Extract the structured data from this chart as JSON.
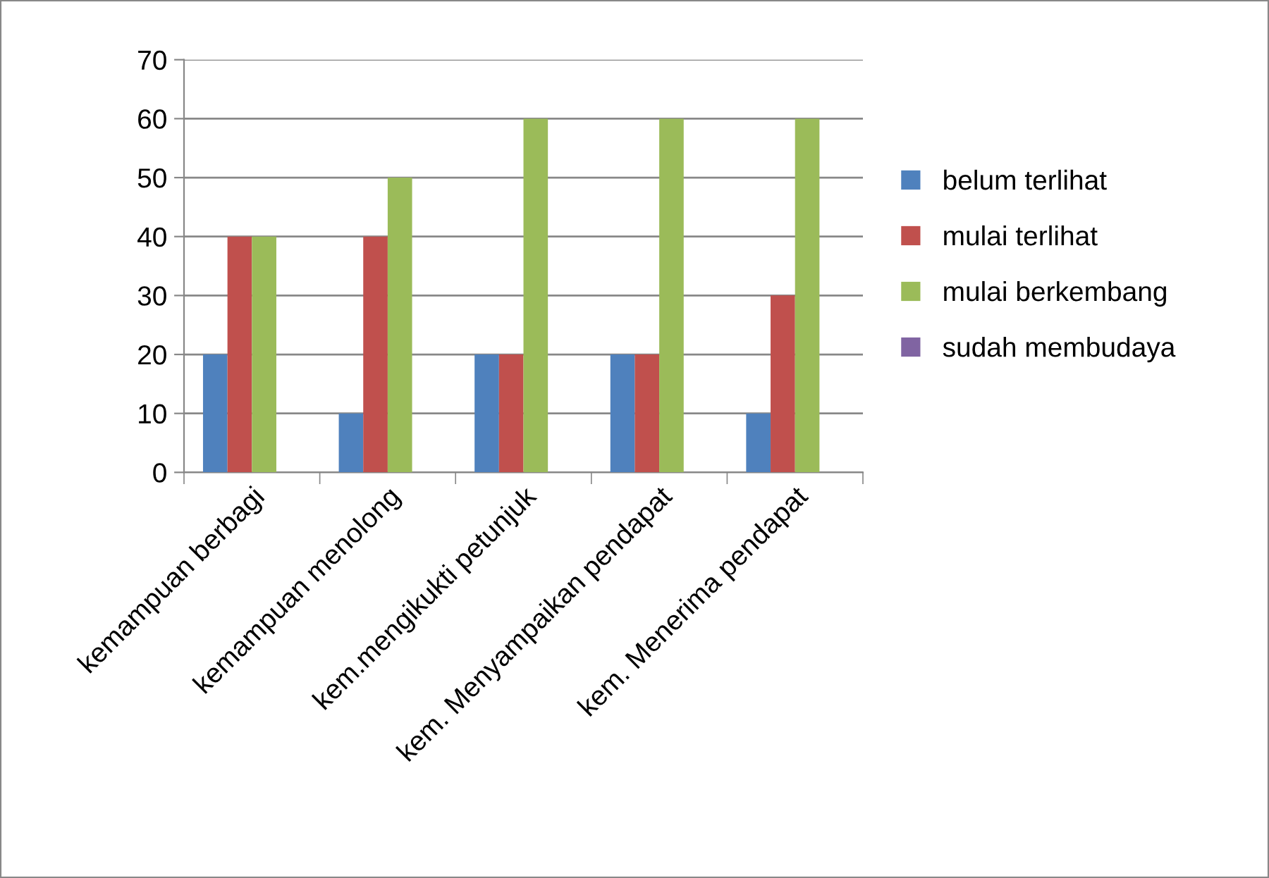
{
  "chart_data": {
    "type": "bar",
    "categories": [
      "kemampuan berbagi",
      "kemampuan menolong",
      "kem.mengikukti petunjuk",
      "kem. Menyampaikan pendapat",
      "kem. Menerima pendapat"
    ],
    "series": [
      {
        "name": "belum terlihat",
        "color": "#4f81bd",
        "values": [
          20,
          10,
          20,
          20,
          10
        ]
      },
      {
        "name": "mulai terlihat",
        "color": "#c0504d",
        "values": [
          40,
          40,
          20,
          20,
          30
        ]
      },
      {
        "name": "mulai berkembang",
        "color": "#9bbb59",
        "values": [
          40,
          50,
          60,
          60,
          60
        ]
      },
      {
        "name": "sudah membudaya",
        "color": "#8064a2",
        "values": [
          0,
          0,
          0,
          0,
          0
        ]
      }
    ],
    "ylim": [
      0,
      70
    ],
    "yticks": [
      0,
      10,
      20,
      30,
      40,
      50,
      60,
      70
    ],
    "grid": "y",
    "legend": "right"
  }
}
